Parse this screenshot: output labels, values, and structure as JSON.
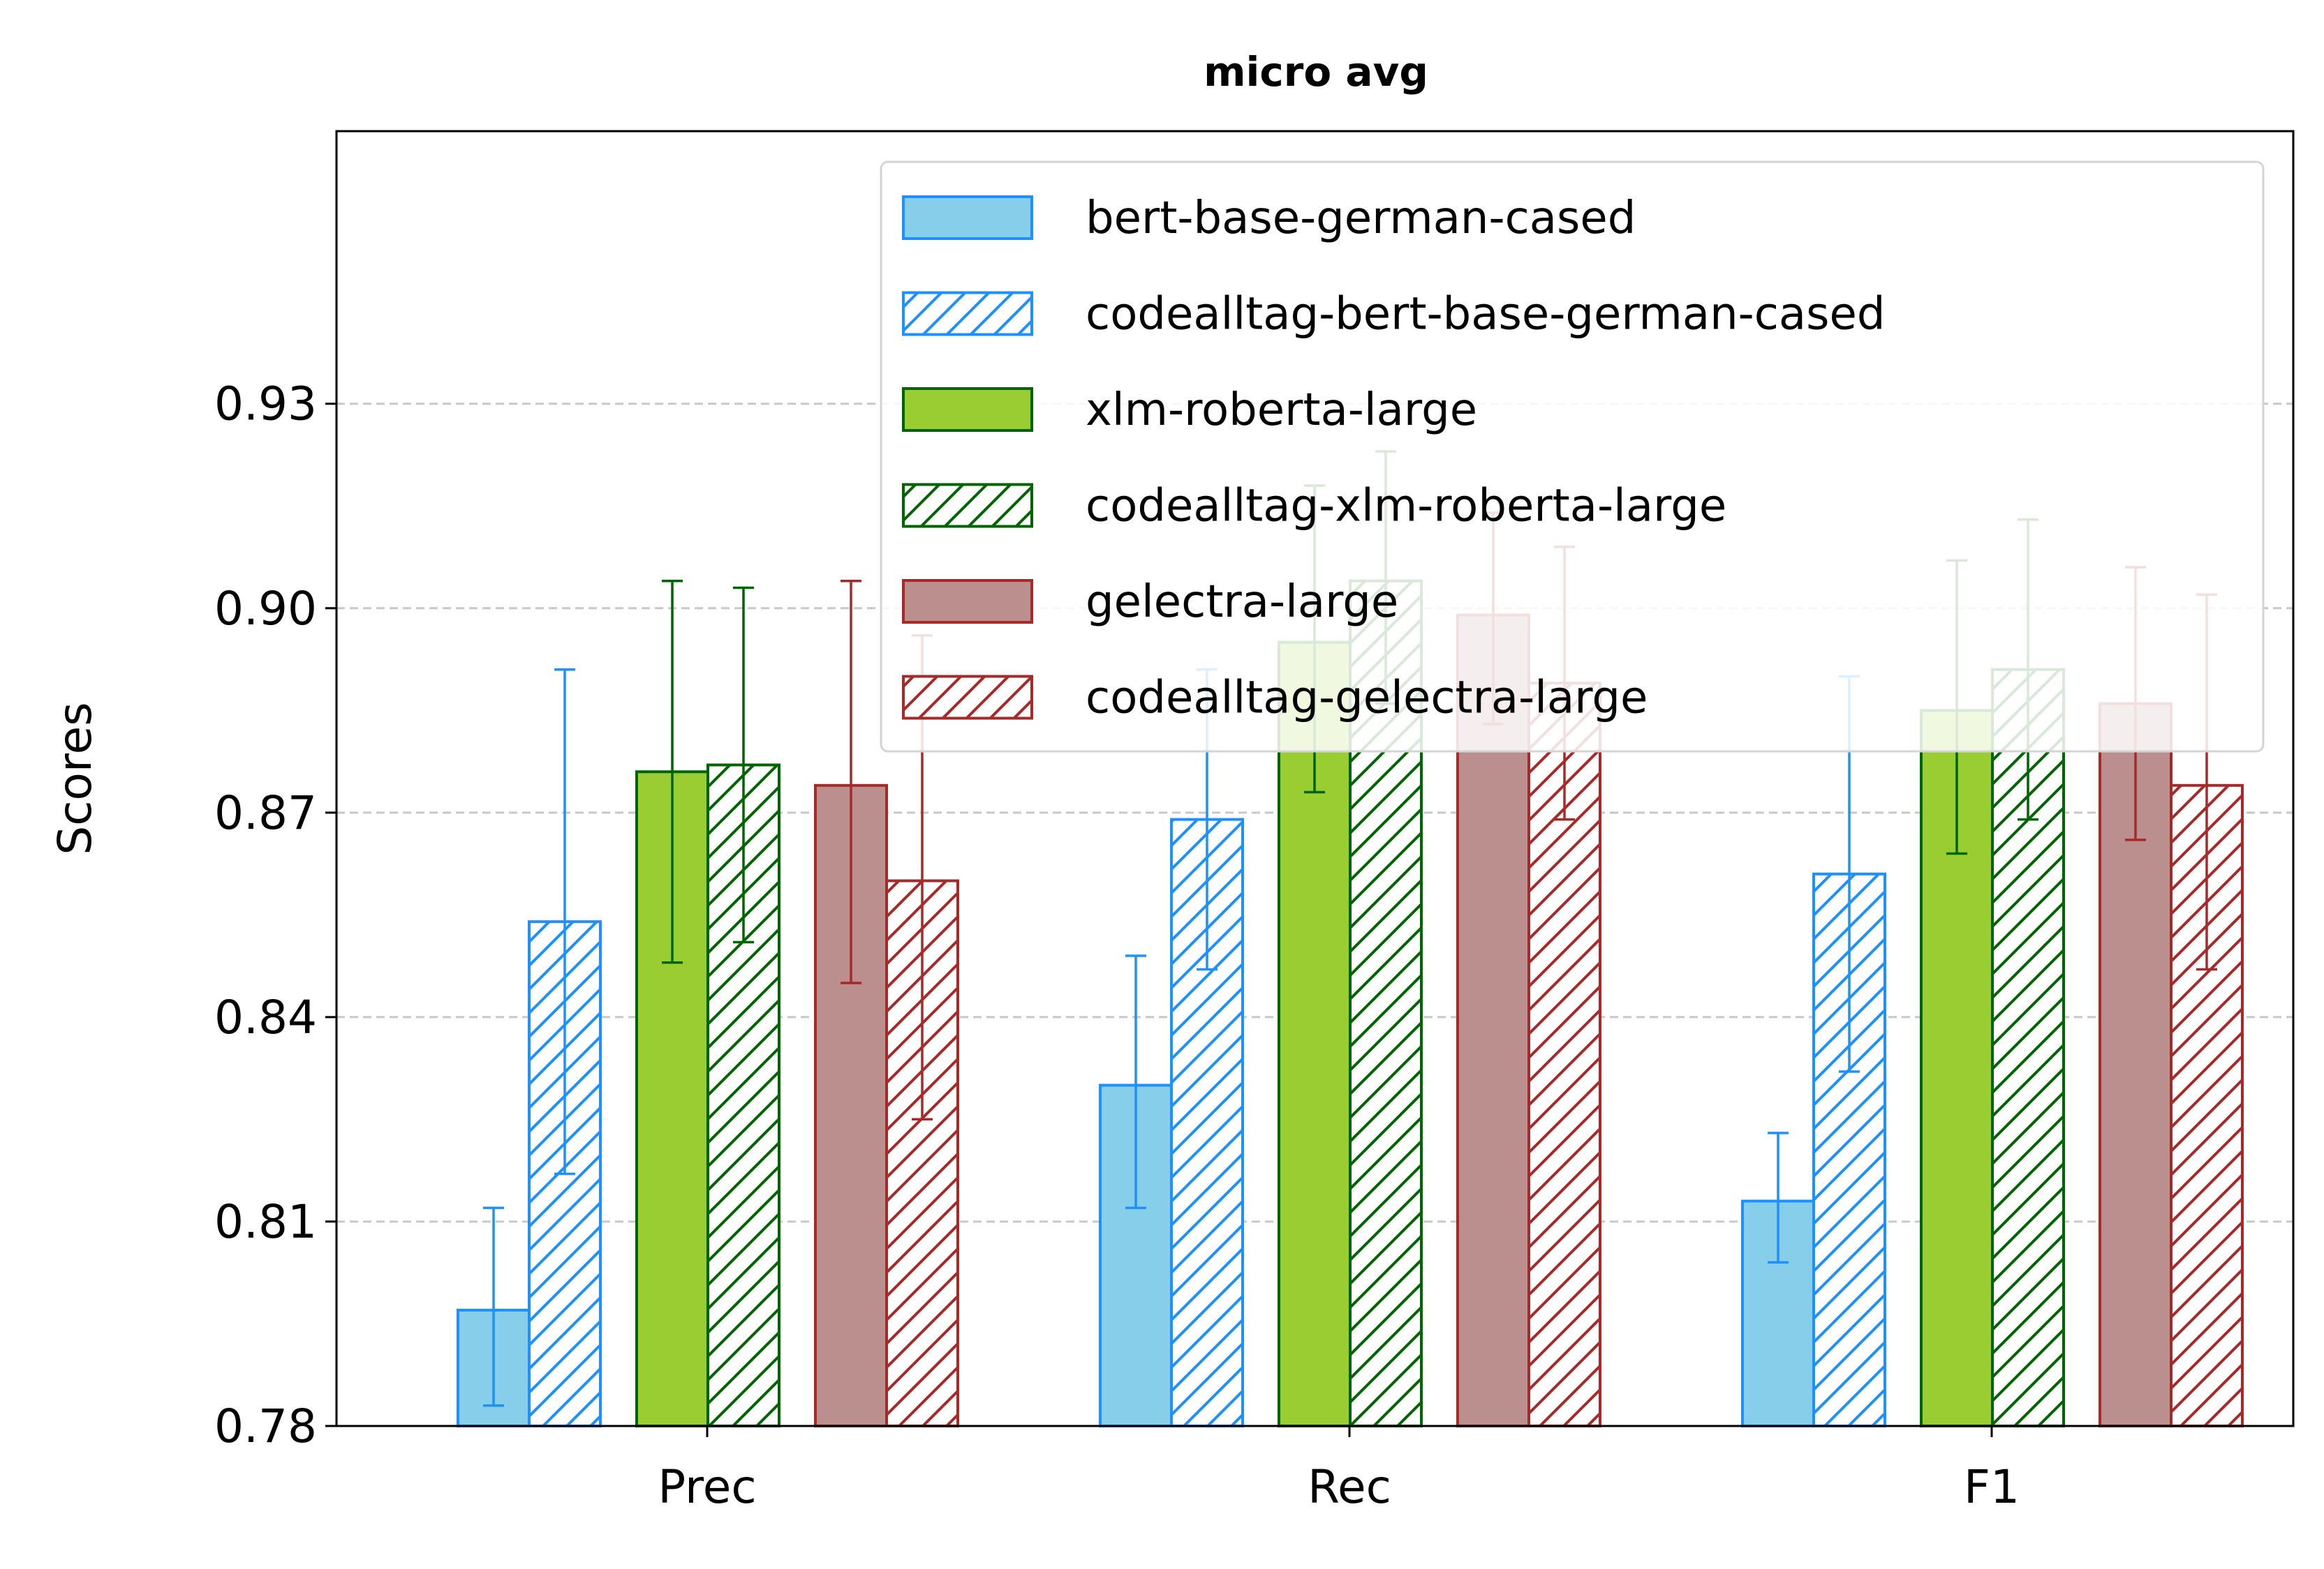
{
  "chart_data": {
    "type": "bar",
    "title": "micro avg",
    "xlabel": "",
    "ylabel": "Scores",
    "categories": [
      "Prec",
      "Rec",
      "F1"
    ],
    "ylim": [
      0.78,
      0.97
    ],
    "yticks": [
      "0.78",
      "0.81",
      "0.84",
      "0.87",
      "0.90",
      "0.93"
    ],
    "grid": "horizontal dashed",
    "legend_position": "top-right",
    "series": [
      {
        "name": "bert-base-german-cased",
        "values": [
          0.797,
          0.83,
          0.813
        ],
        "err_low": [
          0.783,
          0.812,
          0.804
        ],
        "err_high": [
          0.812,
          0.849,
          0.823
        ],
        "fill": "#87CEEB",
        "edge": "#1E90FF",
        "hatched": false
      },
      {
        "name": "codealltag-bert-base-german-cased",
        "values": [
          0.854,
          0.869,
          0.861
        ],
        "err_low": [
          0.817,
          0.847,
          0.832
        ],
        "err_high": [
          0.891,
          0.891,
          0.89
        ],
        "fill": "#ffffff",
        "edge": "#1E90FF",
        "hatched": true
      },
      {
        "name": "xlm-roberta-large",
        "values": [
          0.876,
          0.895,
          0.885
        ],
        "err_low": [
          0.848,
          0.873,
          0.864
        ],
        "err_high": [
          0.904,
          0.918,
          0.907
        ],
        "fill": "#9ACD32",
        "edge": "#006400",
        "hatched": false
      },
      {
        "name": "codealltag-xlm-roberta-large",
        "values": [
          0.877,
          0.904,
          0.891
        ],
        "err_low": [
          0.851,
          0.886,
          0.869
        ],
        "err_high": [
          0.903,
          0.923,
          0.913
        ],
        "fill": "#ffffff",
        "edge": "#006400",
        "hatched": true
      },
      {
        "name": "gelectra-large",
        "values": [
          0.874,
          0.899,
          0.886
        ],
        "err_low": [
          0.845,
          0.883,
          0.866
        ],
        "err_high": [
          0.904,
          0.914,
          0.906
        ],
        "fill": "#BC8F8F",
        "edge": "#A52A2A",
        "hatched": false
      },
      {
        "name": "codealltag-gelectra-large",
        "values": [
          0.86,
          0.889,
          0.874
        ],
        "err_low": [
          0.825,
          0.869,
          0.847
        ],
        "err_high": [
          0.896,
          0.909,
          0.902
        ],
        "fill": "#ffffff",
        "edge": "#A52A2A",
        "hatched": true
      }
    ]
  }
}
